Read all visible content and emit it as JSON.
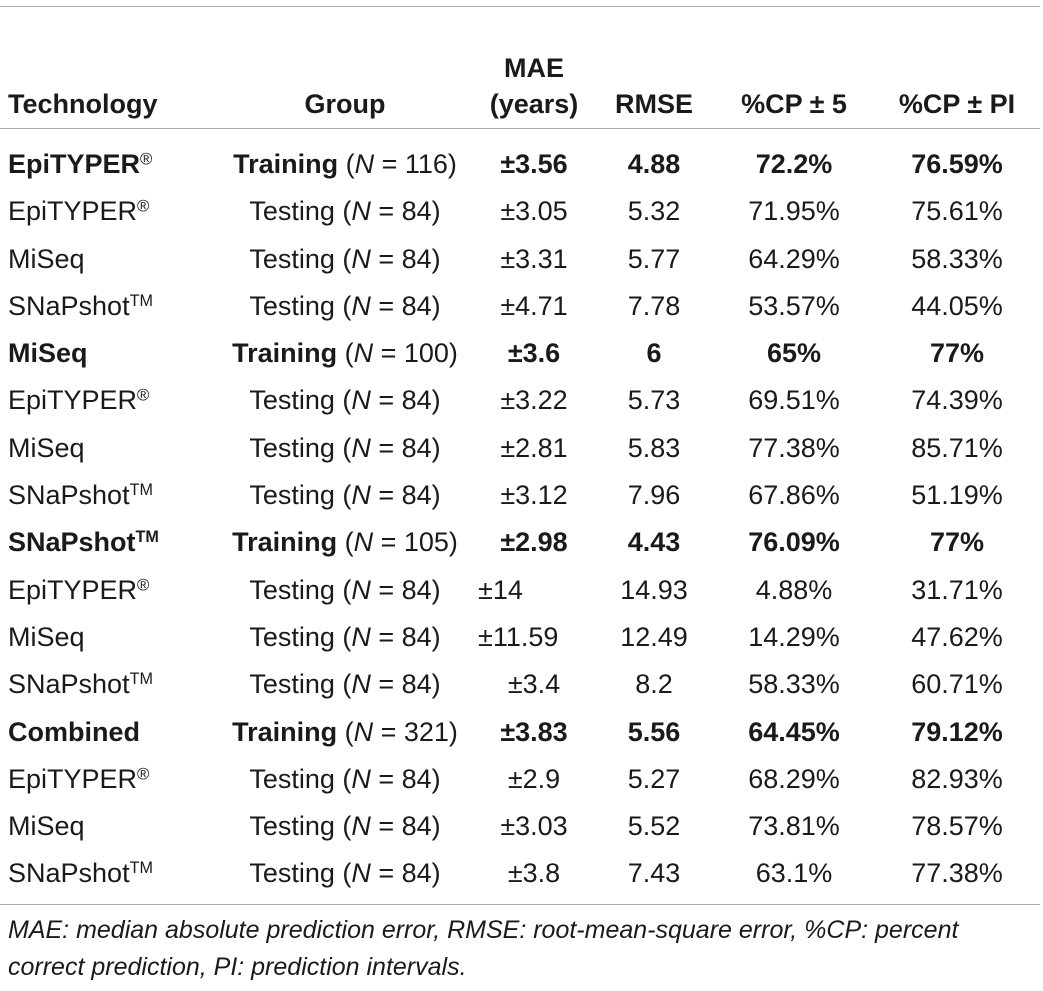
{
  "table": {
    "headers": {
      "technology": "Technology",
      "group": "Group",
      "mae_line1": "MAE",
      "mae_line2": "(years)",
      "rmse": "RMSE",
      "cp5": "%CP ± 5",
      "cppi": "%CP ± PI"
    },
    "rows": [
      {
        "tech": "EpiTYPER",
        "mark": "®",
        "group": "Training",
        "n_prefix": " (",
        "n_var": "N",
        "n_suffix": " = 116)",
        "mae": "±3.56",
        "rmse": "4.88",
        "cp5": "72.2%",
        "cppi": "76.59%",
        "training": true
      },
      {
        "tech": "EpiTYPER",
        "mark": "®",
        "group": "Testing",
        "n_prefix": " (",
        "n_var": "N",
        "n_suffix": " = 84)",
        "mae": "±3.05",
        "rmse": "5.32",
        "cp5": "71.95%",
        "cppi": "75.61%",
        "training": false
      },
      {
        "tech": "MiSeq",
        "mark": "",
        "group": "Testing",
        "n_prefix": " (",
        "n_var": "N",
        "n_suffix": " = 84)",
        "mae": "±3.31",
        "rmse": "5.77",
        "cp5": "64.29%",
        "cppi": "58.33%",
        "training": false
      },
      {
        "tech": "SNaPshot",
        "mark": "TM",
        "group": "Testing",
        "n_prefix": " (",
        "n_var": "N",
        "n_suffix": " = 84)",
        "mae": "±4.71",
        "rmse": "7.78",
        "cp5": "53.57%",
        "cppi": "44.05%",
        "training": false
      },
      {
        "tech": "MiSeq",
        "mark": "",
        "group": "Training",
        "n_prefix": " (",
        "n_var": "N",
        "n_suffix": " = 100)",
        "mae": "±3.6",
        "rmse": "6",
        "cp5": "65%",
        "cppi": "77%",
        "training": true
      },
      {
        "tech": "EpiTYPER",
        "mark": "®",
        "group": "Testing",
        "n_prefix": " (",
        "n_var": "N",
        "n_suffix": " = 84)",
        "mae": "±3.22",
        "rmse": "5.73",
        "cp5": "69.51%",
        "cppi": "74.39%",
        "training": false
      },
      {
        "tech": "MiSeq",
        "mark": "",
        "group": "Testing",
        "n_prefix": " (",
        "n_var": "N",
        "n_suffix": " = 84)",
        "mae": "±2.81",
        "rmse": "5.83",
        "cp5": "77.38%",
        "cppi": "85.71%",
        "training": false
      },
      {
        "tech": "SNaPshot",
        "mark": "TM",
        "group": "Testing",
        "n_prefix": " (",
        "n_var": "N",
        "n_suffix": " = 84)",
        "mae": "±3.12",
        "rmse": "7.96",
        "cp5": "67.86%",
        "cppi": "51.19%",
        "training": false
      },
      {
        "tech": "SNaPshot",
        "mark": "TM",
        "group": "Training",
        "n_prefix": " (",
        "n_var": "N",
        "n_suffix": " = 105)",
        "mae": "±2.98",
        "rmse": "4.43",
        "cp5": "76.09%",
        "cppi": "77%",
        "training": true
      },
      {
        "tech": "EpiTYPER",
        "mark": "®",
        "group": "Testing",
        "n_prefix": " (",
        "n_var": "N",
        "n_suffix": " = 84)",
        "mae": "±14",
        "rmse": "14.93",
        "cp5": "4.88%",
        "cppi": "31.71%",
        "training": false
      },
      {
        "tech": "MiSeq",
        "mark": "",
        "group": "Testing",
        "n_prefix": " (",
        "n_var": "N",
        "n_suffix": " = 84)",
        "mae": "±11.59",
        "rmse": "12.49",
        "cp5": "14.29%",
        "cppi": "47.62%",
        "training": false
      },
      {
        "tech": "SNaPshot",
        "mark": "TM",
        "group": "Testing",
        "n_prefix": " (",
        "n_var": "N",
        "n_suffix": " = 84)",
        "mae": "±3.4",
        "rmse": "8.2",
        "cp5": "58.33%",
        "cppi": "60.71%",
        "training": false
      },
      {
        "tech": "Combined",
        "mark": "",
        "group": "Training",
        "n_prefix": " (",
        "n_var": "N",
        "n_suffix": " = 321)",
        "mae": "±3.83",
        "rmse": "5.56",
        "cp5": "64.45%",
        "cppi": "79.12%",
        "training": true
      },
      {
        "tech": "EpiTYPER",
        "mark": "®",
        "group": "Testing",
        "n_prefix": " (",
        "n_var": "N",
        "n_suffix": " = 84)",
        "mae": "±2.9",
        "rmse": "5.27",
        "cp5": "68.29%",
        "cppi": "82.93%",
        "training": false
      },
      {
        "tech": "MiSeq",
        "mark": "",
        "group": "Testing",
        "n_prefix": " (",
        "n_var": "N",
        "n_suffix": " = 84)",
        "mae": "±3.03",
        "rmse": "5.52",
        "cp5": "73.81%",
        "cppi": "78.57%",
        "training": false
      },
      {
        "tech": "SNaPshot",
        "mark": "TM",
        "group": "Testing",
        "n_prefix": " (",
        "n_var": "N",
        "n_suffix": " = 84)",
        "mae": "±3.8",
        "rmse": "7.43",
        "cp5": "63.1%",
        "cppi": "77.38%",
        "training": false
      }
    ]
  },
  "footnote": "MAE: median absolute prediction error, RMSE: root-mean-square error, %CP: percent correct prediction, PI: prediction intervals."
}
